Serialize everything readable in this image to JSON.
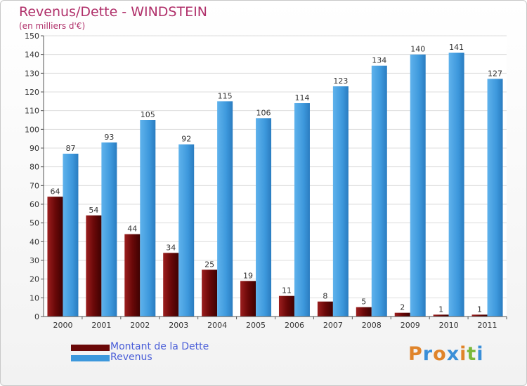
{
  "header": {
    "title": "Revenus/Dette - WINDSTEIN",
    "subtitle": "(en milliers d'€)"
  },
  "legend": {
    "items": [
      {
        "label": "Montant de la Dette",
        "color": "#7a0a0a"
      },
      {
        "label": "Revenus",
        "color": "#3d98dc"
      }
    ]
  },
  "logo": {
    "text": "Proxiti",
    "colors": [
      "#e0842a",
      "#3a8fd8",
      "#e0842a",
      "#3a8fd8",
      "#e0842a",
      "#7ab83a",
      "#3a8fd8"
    ]
  },
  "chart_data": {
    "type": "bar",
    "categories": [
      "2000",
      "2001",
      "2002",
      "2003",
      "2004",
      "2005",
      "2006",
      "2007",
      "2008",
      "2009",
      "2010",
      "2011"
    ],
    "series": [
      {
        "name": "Montant de la Dette",
        "values": [
          64,
          54,
          44,
          34,
          25,
          19,
          11,
          8,
          5,
          2,
          1,
          1
        ],
        "color": "#7a0a0a"
      },
      {
        "name": "Revenus",
        "values": [
          87,
          93,
          105,
          92,
          115,
          106,
          114,
          123,
          134,
          140,
          141,
          127
        ],
        "color": "#3d98dc"
      }
    ],
    "yticks": [
      0,
      10,
      20,
      30,
      40,
      50,
      60,
      70,
      80,
      90,
      100,
      110,
      120,
      130,
      140,
      150
    ],
    "ylim": [
      0,
      150
    ],
    "grid": true,
    "legend_position": "bottom-left"
  }
}
